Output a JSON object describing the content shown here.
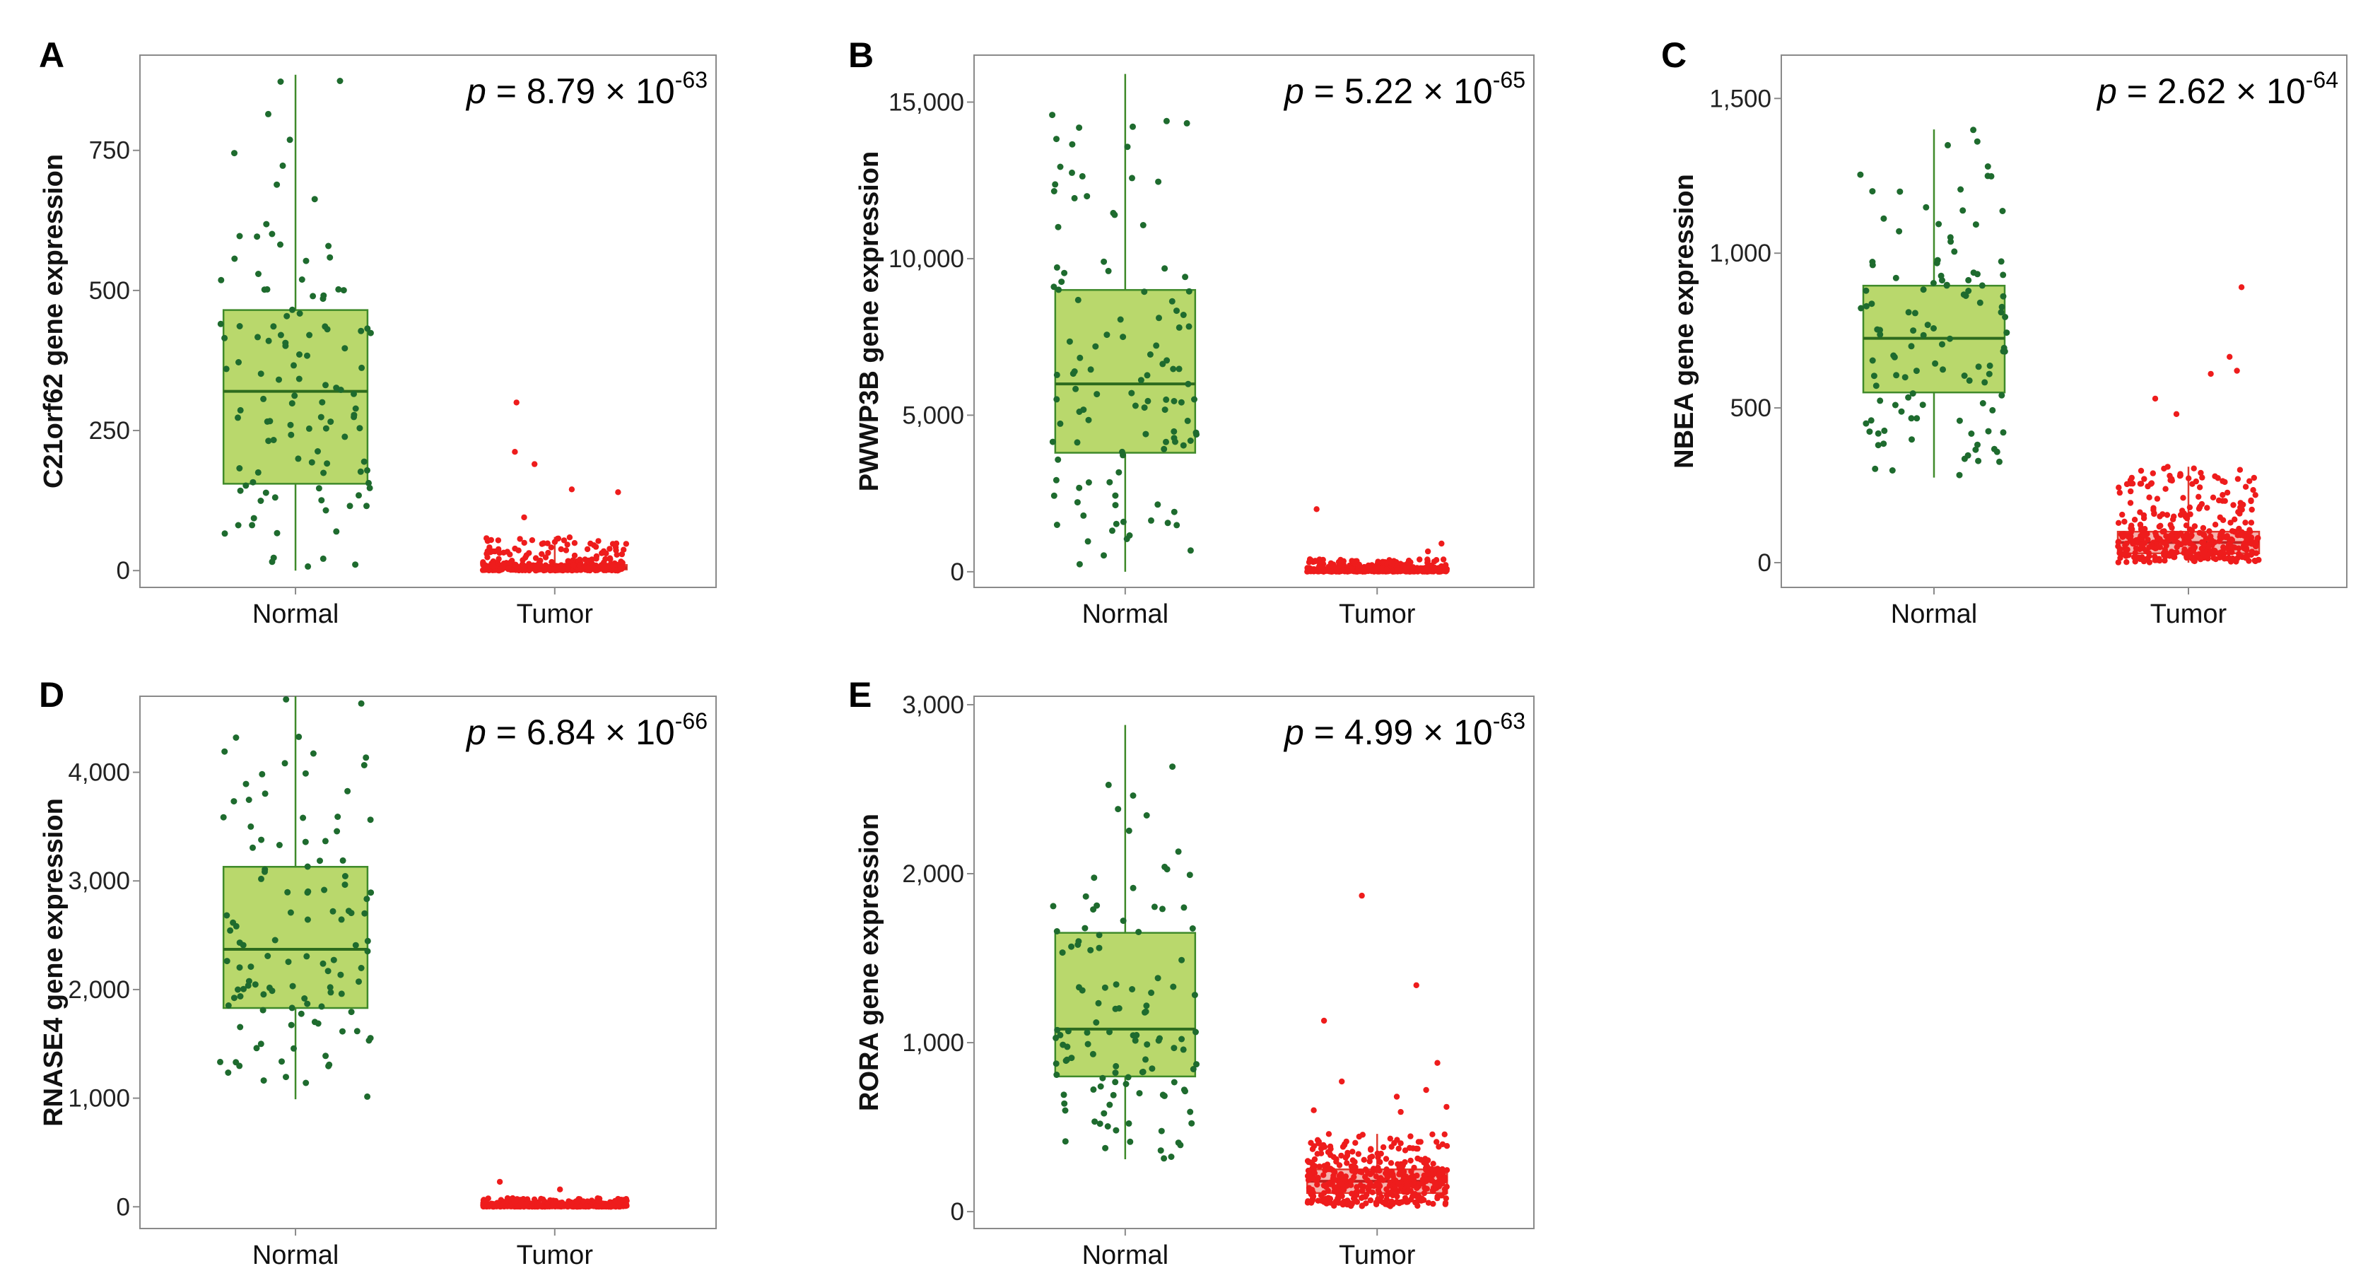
{
  "figure": {
    "p_prefix": "p",
    "p_eq": " = ",
    "p_times": " × 10"
  },
  "colors": {
    "normal_point": "#1e6b2e",
    "normal_box": "#b9d86c",
    "normal_line": "#3f8a2a",
    "tumor_point": "#ee1c1c",
    "tumor_box": "#f3a6a0",
    "tumor_line": "#e0392e",
    "axis": "#8a8a8a"
  },
  "chart_data": [
    {
      "panel": "A",
      "type": "box",
      "ylabel": "C21orf62 gene expression",
      "categories": [
        "Normal",
        "Tumor"
      ],
      "ylim": [
        -30,
        920
      ],
      "yticks": [
        0,
        250,
        500,
        750
      ],
      "ytick_labels": [
        "0",
        "250",
        "500",
        "750"
      ],
      "p_mant": "8.79",
      "p_exp": "-63",
      "groups": [
        {
          "name": "Normal",
          "min": 0,
          "q1": 155,
          "median": 320,
          "q3": 465,
          "max": 885,
          "n": 115
        },
        {
          "name": "Tumor",
          "min": 0,
          "q1": 2,
          "median": 5,
          "q3": 10,
          "max": 60,
          "n": 420,
          "outliers": [
            300,
            212,
            190,
            145,
            140,
            95
          ]
        }
      ]
    },
    {
      "panel": "B",
      "type": "box",
      "ylabel": "PWWP3B gene expression",
      "categories": [
        "Normal",
        "Tumor"
      ],
      "ylim": [
        -500,
        16500
      ],
      "yticks": [
        0,
        5000,
        10000,
        15000
      ],
      "ytick_labels": [
        "0",
        "5,000",
        "10,000",
        "15,000"
      ],
      "p_mant": "5.22",
      "p_exp": "-65",
      "groups": [
        {
          "name": "Normal",
          "min": 0,
          "q1": 3800,
          "median": 6000,
          "q3": 9000,
          "max": 15900,
          "n": 115
        },
        {
          "name": "Tumor",
          "min": 0,
          "q1": 20,
          "median": 60,
          "q3": 120,
          "max": 400,
          "n": 420,
          "outliers": [
            2000,
            900,
            650
          ]
        }
      ]
    },
    {
      "panel": "C",
      "type": "box",
      "ylabel": "NBEA gene expression",
      "categories": [
        "Normal",
        "Tumor"
      ],
      "ylim": [
        -80,
        1640
      ],
      "yticks": [
        0,
        500,
        1000,
        1500
      ],
      "ytick_labels": [
        "0",
        "500",
        "1,000",
        "1,500"
      ],
      "p_mant": "2.62",
      "p_exp": "-64",
      "groups": [
        {
          "name": "Normal",
          "min": 275,
          "q1": 550,
          "median": 725,
          "q3": 895,
          "max": 1400,
          "n": 115
        },
        {
          "name": "Tumor",
          "min": 0,
          "q1": 30,
          "median": 65,
          "q3": 100,
          "max": 310,
          "n": 420,
          "outliers": [
            890,
            665,
            620,
            610,
            530,
            480
          ]
        }
      ]
    },
    {
      "panel": "D",
      "type": "box",
      "ylabel": "RNASE4 gene expression",
      "categories": [
        "Normal",
        "Tumor"
      ],
      "ylim": [
        -200,
        4700
      ],
      "yticks": [
        0,
        1000,
        2000,
        3000,
        4000
      ],
      "ytick_labels": [
        "0",
        "1,000",
        "2,000",
        "3,000",
        "4,000"
      ],
      "p_mant": "6.84",
      "p_exp": "-66",
      "groups": [
        {
          "name": "Normal",
          "min": 990,
          "q1": 1830,
          "median": 2370,
          "q3": 3130,
          "max": 4700,
          "n": 115
        },
        {
          "name": "Tumor",
          "min": 0,
          "q1": 5,
          "median": 15,
          "q3": 30,
          "max": 80,
          "n": 420,
          "outliers": [
            230,
            160
          ]
        }
      ]
    },
    {
      "panel": "E",
      "type": "box",
      "ylabel": "RORA gene expression",
      "categories": [
        "Normal",
        "Tumor"
      ],
      "ylim": [
        -100,
        3050
      ],
      "yticks": [
        0,
        1000,
        2000,
        3000
      ],
      "ytick_labels": [
        "0",
        "1,000",
        "2,000",
        "3,000"
      ],
      "p_mant": "4.99",
      "p_exp": "-63",
      "groups": [
        {
          "name": "Normal",
          "min": 310,
          "q1": 800,
          "median": 1080,
          "q3": 1650,
          "max": 2880,
          "n": 115
        },
        {
          "name": "Tumor",
          "min": 30,
          "q1": 110,
          "median": 180,
          "q3": 250,
          "max": 460,
          "n": 420,
          "outliers": [
            1870,
            1340,
            1130,
            880,
            770,
            720,
            680,
            620,
            600,
            590
          ]
        }
      ]
    }
  ]
}
